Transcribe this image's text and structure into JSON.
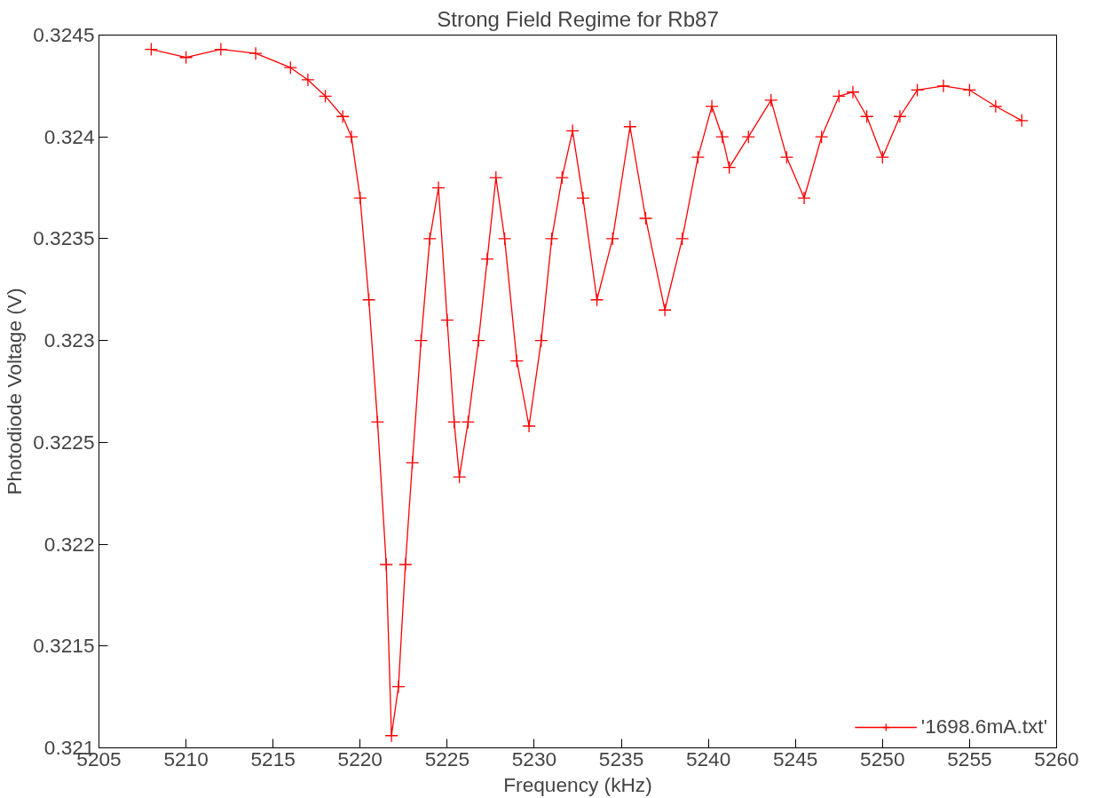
{
  "chart_data": {
    "type": "line",
    "title": "Strong Field Regime for Rb87",
    "xlabel": "Frequency (kHz)",
    "ylabel": "Photodiode Voltage (V)",
    "xlim": [
      5205,
      5260
    ],
    "xticks": [
      5205,
      5210,
      5215,
      5220,
      5225,
      5230,
      5235,
      5240,
      5245,
      5250,
      5255,
      5260
    ],
    "ylim": [
      0.321,
      0.3245
    ],
    "yticks": [
      0.321,
      0.3215,
      0.322,
      0.3225,
      0.323,
      0.3235,
      0.324,
      0.3245
    ],
    "grid": false,
    "legend": "bottom right",
    "marker": "cross",
    "line_style": "solid",
    "series": [
      {
        "name": "'1698.6mA.txt'",
        "color": "#ff0000",
        "x": [
          5208,
          5210,
          5212,
          5214,
          5216,
          5217,
          5218,
          5219,
          5219.5,
          5220,
          5220.5,
          5221,
          5221.5,
          5221.8,
          5222.2,
          5222.6,
          5223,
          5223.5,
          5224,
          5224.5,
          5225,
          5225.4,
          5225.7,
          5226.2,
          5226.8,
          5227.3,
          5227.8,
          5228.3,
          5229,
          5229.7,
          5230.4,
          5231,
          5231.6,
          5232.2,
          5232.8,
          5233.6,
          5234.5,
          5235.5,
          5236.4,
          5237.5,
          5238.5,
          5239.4,
          5240.2,
          5240.8,
          5241.2,
          5242.3,
          5243.6,
          5244.5,
          5245.5,
          5246.5,
          5247.5,
          5248.3,
          5249.1,
          5250,
          5251,
          5252,
          5253.5,
          5255,
          5256.5,
          5258
        ],
        "values": [
          0.32443,
          0.32439,
          0.32443,
          0.32441,
          0.32434,
          0.32428,
          0.3242,
          0.3241,
          0.324,
          0.3237,
          0.3232,
          0.3226,
          0.3219,
          0.32106,
          0.3213,
          0.3219,
          0.3224,
          0.323,
          0.3235,
          0.32375,
          0.3231,
          0.3226,
          0.32233,
          0.3226,
          0.323,
          0.3234,
          0.3238,
          0.3235,
          0.3229,
          0.32258,
          0.323,
          0.3235,
          0.3238,
          0.32403,
          0.3237,
          0.3232,
          0.3235,
          0.32405,
          0.3236,
          0.32315,
          0.3235,
          0.3239,
          0.32415,
          0.324,
          0.32385,
          0.324,
          0.32418,
          0.3239,
          0.3237,
          0.324,
          0.3242,
          0.32422,
          0.3241,
          0.3239,
          0.3241,
          0.32423,
          0.32425,
          0.32423,
          0.32415,
          0.32408
        ]
      }
    ]
  }
}
